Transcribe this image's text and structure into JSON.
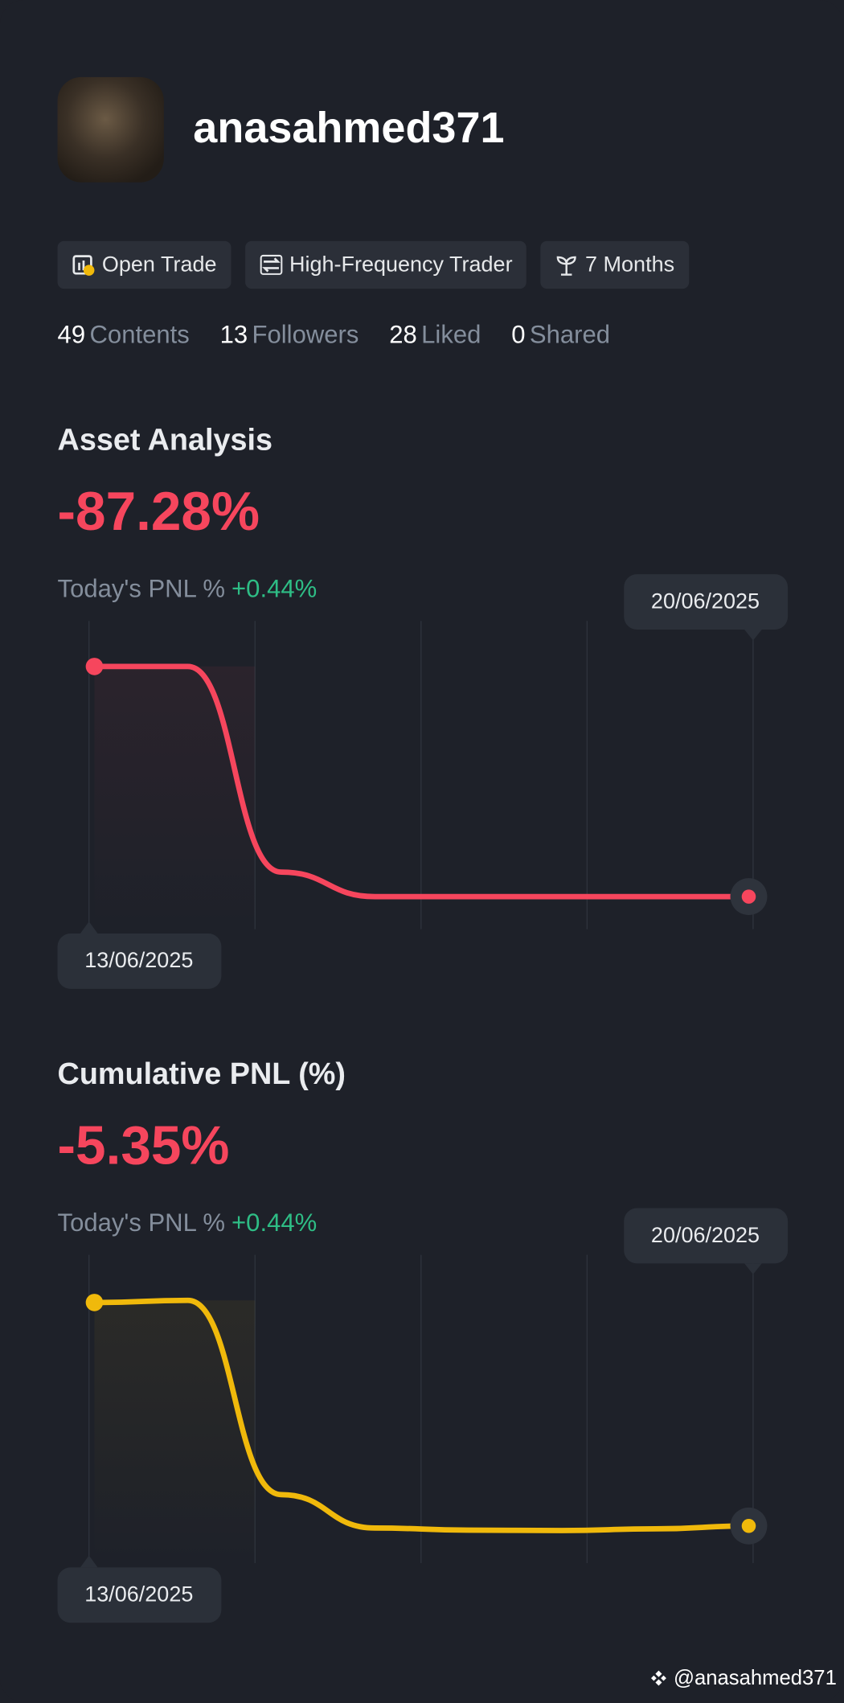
{
  "profile": {
    "username": "anasahmed371",
    "tags": [
      "Open Trade",
      "High-Frequency Trader",
      "7 Months"
    ],
    "stats": [
      {
        "value": 49,
        "label": "Contents"
      },
      {
        "value": 13,
        "label": "Followers"
      },
      {
        "value": 28,
        "label": "Liked"
      },
      {
        "value": 0,
        "label": "Shared"
      }
    ]
  },
  "chart_data": [
    {
      "type": "line",
      "title": "Asset Analysis",
      "headline": "-87.28%",
      "pnl_label": "Today's PNL %",
      "pnl_value": "+0.44%",
      "categories": [
        "13/06/2025",
        null,
        null,
        null,
        null,
        null,
        null,
        "20/06/2025"
      ],
      "series": [
        {
          "color": "#f6465d",
          "values": [
            0,
            0,
            -78,
            -87.28,
            -87.28,
            -87.28,
            -87.28,
            -87.28
          ]
        }
      ]
    },
    {
      "type": "line",
      "title": "Cumulative PNL (%)",
      "headline": "-5.35%",
      "pnl_label": "Today's PNL %",
      "pnl_value": "+0.44%",
      "categories": [
        "13/06/2025",
        null,
        null,
        null,
        null,
        null,
        null,
        "20/06/2025"
      ],
      "series": [
        {
          "color": "#f0b90b",
          "values": [
            0,
            0.05,
            -4.6,
            -5.4,
            -5.45,
            -5.46,
            -5.42,
            -5.35
          ]
        }
      ]
    }
  ],
  "watermark": "@anasahmed371"
}
